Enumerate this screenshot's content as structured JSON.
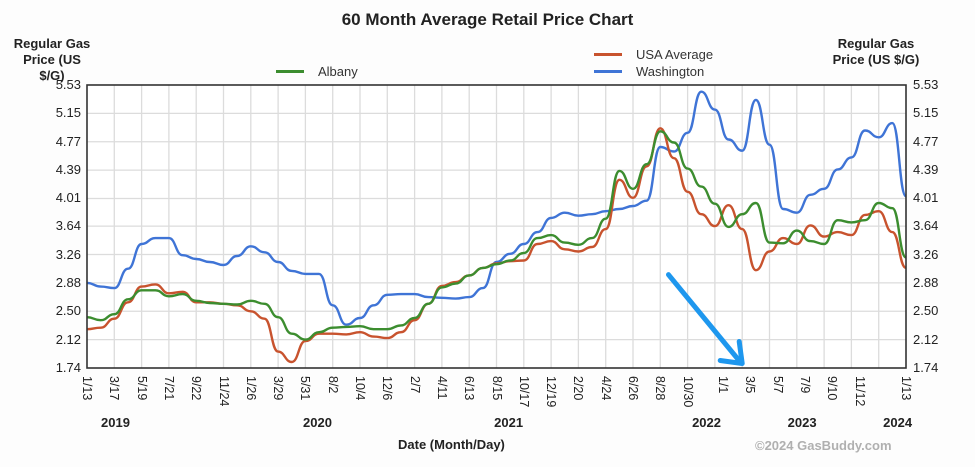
{
  "chart_data": {
    "type": "line",
    "title": "60 Month Average Retail Price Chart",
    "ylabel_left": "Regular Gas Price (US $/G)",
    "ylabel_right": "Regular Gas Price (US $/G)",
    "ylabel_line1": "Regular Gas",
    "ylabel_line2": "Price (US $/G)",
    "xlabel": "Date (Month/Day)",
    "ylim": [
      1.74,
      5.53
    ],
    "yticks": [
      "5.53",
      "5.15",
      "4.77",
      "4.39",
      "4.01",
      "3.64",
      "3.26",
      "2.88",
      "2.50",
      "2.12",
      "1.74"
    ],
    "ytick_values": [
      5.53,
      5.15,
      4.77,
      4.39,
      4.01,
      3.64,
      3.26,
      2.88,
      2.5,
      2.12,
      1.74
    ],
    "xlim_months": [
      0,
      60
    ],
    "xticks": [
      "1/13",
      "3/17",
      "5/19",
      "7/21",
      "9/22",
      "11/24",
      "1/26",
      "3/29",
      "5/31",
      "8/2",
      "10/4",
      "12/6",
      "2/7",
      "4/11",
      "6/13",
      "8/15",
      "10/17",
      "12/19",
      "2/20",
      "4/24",
      "6/26",
      "8/28",
      "10/30",
      "1/1",
      "3/5",
      "5/7",
      "7/9",
      "9/10",
      "11/12",
      "1/13"
    ],
    "xtick_months": [
      0,
      2,
      4,
      6,
      8,
      10,
      12,
      14,
      16,
      18,
      20,
      22,
      24,
      26,
      28,
      30,
      32,
      34,
      36,
      38,
      40,
      42,
      44,
      46.6,
      48.6,
      50.6,
      52.6,
      54.6,
      56.6,
      60
    ],
    "years": [
      {
        "label": "2019",
        "month": 2.2
      },
      {
        "label": "2020",
        "month": 17.0
      },
      {
        "label": "2021",
        "month": 31.0
      },
      {
        "label": "2022",
        "month": 45.5
      },
      {
        "label": "2023",
        "month": 52.5
      },
      {
        "label": "2024",
        "month": 59.5
      }
    ],
    "grid": true,
    "legend": [
      {
        "name": "Albany",
        "color": "#3c8d2f",
        "position": "top-left"
      },
      {
        "name": "USA Average",
        "color": "#c8532e",
        "position": "top-right"
      },
      {
        "name": "Washington",
        "color": "#3f74d6",
        "position": "top-right"
      }
    ],
    "series": [
      {
        "name": "Washington",
        "color": "#3f74d6",
        "values": [
          2.88,
          2.83,
          2.81,
          3.07,
          3.4,
          3.48,
          3.48,
          3.25,
          3.2,
          3.16,
          3.12,
          3.24,
          3.37,
          3.29,
          3.16,
          3.04,
          3.0,
          3.0,
          2.58,
          2.32,
          2.41,
          2.58,
          2.72,
          2.73,
          2.73,
          2.69,
          2.68,
          2.67,
          2.69,
          2.81,
          3.16,
          3.27,
          3.4,
          3.56,
          3.75,
          3.82,
          3.78,
          3.8,
          3.84,
          3.87,
          3.91,
          3.98,
          4.7,
          4.64,
          4.89,
          5.44,
          5.2,
          4.8,
          4.65,
          5.33,
          4.73,
          3.87,
          3.82,
          4.06,
          4.14,
          4.4,
          4.56,
          4.92,
          4.83,
          5.02,
          4.04
        ]
      },
      {
        "name": "USA Average",
        "color": "#c8532e",
        "values": [
          2.26,
          2.28,
          2.4,
          2.62,
          2.83,
          2.86,
          2.74,
          2.76,
          2.62,
          2.62,
          2.6,
          2.58,
          2.5,
          2.4,
          1.96,
          1.82,
          2.1,
          2.2,
          2.2,
          2.19,
          2.22,
          2.16,
          2.14,
          2.22,
          2.38,
          2.6,
          2.84,
          2.89,
          2.98,
          3.08,
          3.14,
          3.17,
          3.18,
          3.4,
          3.44,
          3.33,
          3.3,
          3.36,
          3.6,
          4.26,
          4.02,
          4.44,
          4.95,
          4.55,
          4.1,
          3.8,
          3.64,
          3.92,
          3.6,
          3.05,
          3.3,
          3.48,
          3.4,
          3.65,
          3.5,
          3.56,
          3.52,
          3.79,
          3.84,
          3.56,
          3.08
        ]
      },
      {
        "name": "Albany",
        "color": "#3c8d2f",
        "values": [
          2.42,
          2.38,
          2.46,
          2.66,
          2.78,
          2.78,
          2.7,
          2.73,
          2.64,
          2.61,
          2.6,
          2.59,
          2.64,
          2.6,
          2.42,
          2.2,
          2.12,
          2.22,
          2.28,
          2.29,
          2.3,
          2.26,
          2.26,
          2.31,
          2.41,
          2.6,
          2.82,
          2.87,
          2.98,
          3.08,
          3.13,
          3.18,
          3.28,
          3.48,
          3.52,
          3.42,
          3.39,
          3.48,
          3.74,
          4.38,
          4.14,
          4.47,
          4.91,
          4.76,
          4.41,
          4.17,
          3.94,
          3.63,
          3.8,
          3.95,
          3.42,
          3.41,
          3.58,
          3.44,
          3.4,
          3.72,
          3.69,
          3.72,
          3.95,
          3.88,
          3.22
        ]
      }
    ],
    "annotation": {
      "type": "arrow",
      "color": "#1e97ee",
      "description_from_month": 42.6,
      "from_value": 2.99,
      "to_month": 48.0,
      "to_value": 1.8
    },
    "copyright": "©2024 GasBuddy.com"
  }
}
